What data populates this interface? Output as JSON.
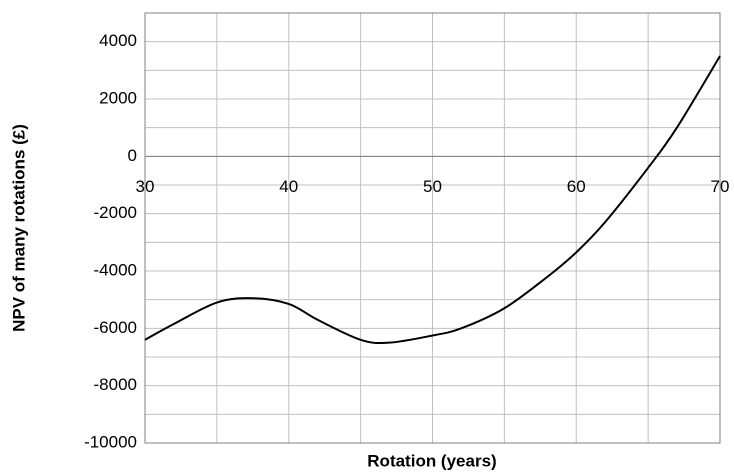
{
  "chart_data": {
    "type": "line",
    "x_label": "Rotation (years)",
    "y_label": "NPV of many rotations (£)",
    "x": [
      30,
      32,
      35,
      37.5,
      40,
      42,
      45,
      47,
      50,
      52,
      55,
      58,
      60,
      62,
      65,
      67,
      70
    ],
    "series": [
      {
        "name": "NPV",
        "color": "#000000",
        "values": [
          -6400,
          -5850,
          -5100,
          -4950,
          -5150,
          -5700,
          -6400,
          -6500,
          -6250,
          -6000,
          -5300,
          -4200,
          -3350,
          -2300,
          -400,
          1000,
          3500
        ]
      }
    ],
    "xlim": [
      30,
      70
    ],
    "xticks": [
      30,
      40,
      50,
      60,
      70
    ],
    "x_minor_gridlines": [
      35,
      45,
      55,
      65
    ],
    "ylim": [
      -10000,
      5000
    ],
    "yticks": [
      -10000,
      -8000,
      -6000,
      -4000,
      -2000,
      0,
      2000,
      4000
    ],
    "y_minor_gridlines": [
      -9000,
      -7000,
      -5000,
      -3000,
      -1000,
      1000,
      3000
    ],
    "grid": true
  }
}
